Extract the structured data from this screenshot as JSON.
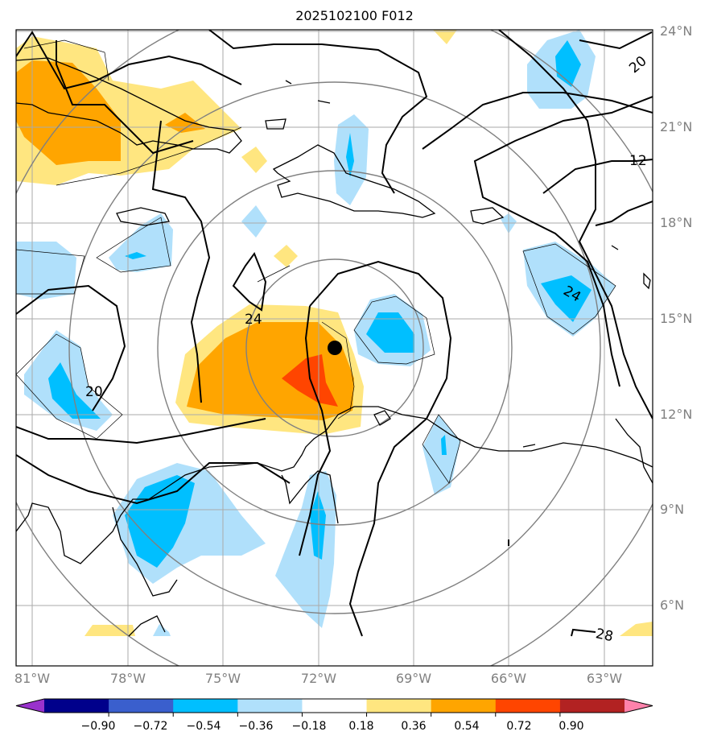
{
  "title": "2025102100 F012",
  "lat_labels": [
    "24°N",
    "21°N",
    "18°N",
    "15°N",
    "12°N",
    "9°N",
    "6°N"
  ],
  "lon_labels": [
    "81°W",
    "78°W",
    "75°W",
    "72°W",
    "69°W",
    "66°W",
    "63°W"
  ],
  "contour_labels": [
    "20",
    "12",
    "24",
    "24",
    "20",
    "28"
  ],
  "colorbar": {
    "ticks": [
      "−0.90",
      "−0.72",
      "−0.54",
      "−0.36",
      "−0.18",
      "0.18",
      "0.36",
      "0.54",
      "0.72",
      "0.90"
    ],
    "colors": [
      "#9932cc",
      "#00008b",
      "#3a5fcd",
      "#00bfff",
      "#b0e0fb",
      "#ffffff",
      "#ffe680",
      "#ffa500",
      "#ff4500",
      "#b22222",
      "#ff82ab"
    ]
  },
  "center_marker": "storm-center"
}
